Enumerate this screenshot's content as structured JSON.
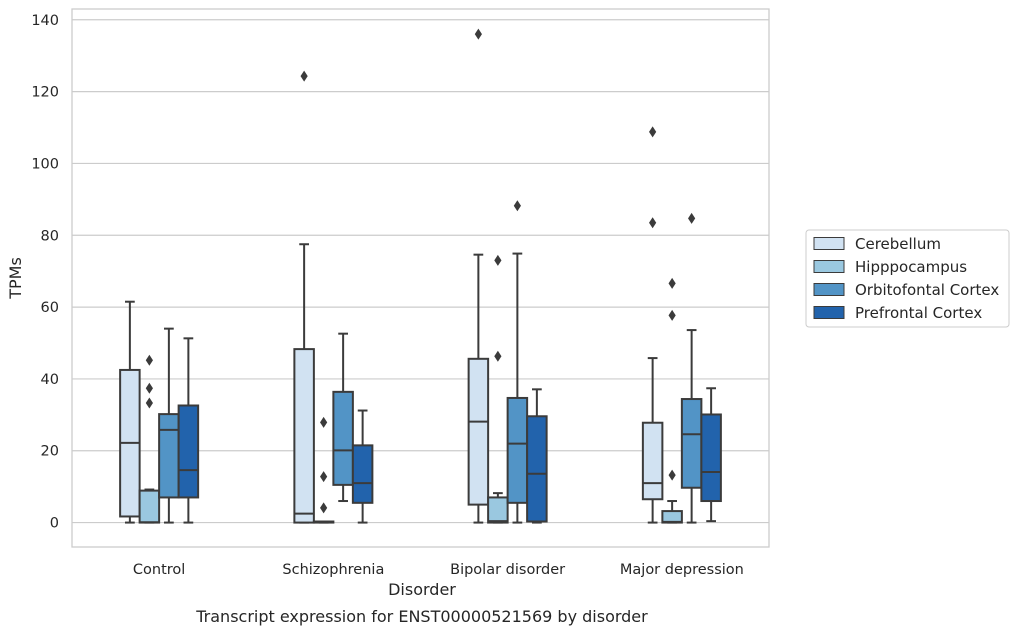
{
  "chart_data": {
    "type": "box",
    "title": "",
    "caption": "Transcript expression for ENST00000521569 by disorder",
    "xlabel": "Disorder",
    "ylabel": "TPMs",
    "ylim": [
      -6.8,
      143
    ],
    "yticks": [
      0,
      20,
      40,
      60,
      80,
      100,
      120,
      140
    ],
    "grid": "horizontal",
    "legend_position": "right",
    "categories": [
      "Control",
      "Schizophrenia",
      "Bipolar disorder",
      "Major depression"
    ],
    "series": [
      {
        "name": "Cerebellum",
        "color": "#d1e2f2",
        "boxes": [
          {
            "whisker_low": 0,
            "q1": 1.7,
            "median": 22.2,
            "q3": 42.5,
            "whisker_high": 61.5,
            "outliers": []
          },
          {
            "whisker_low": 0,
            "q1": 0,
            "median": 2.5,
            "q3": 48.3,
            "whisker_high": 77.5,
            "outliers": [
              124.3
            ]
          },
          {
            "whisker_low": 0,
            "q1": 5,
            "median": 28.1,
            "q3": 45.6,
            "whisker_high": 74.6,
            "outliers": [
              136.0
            ]
          },
          {
            "whisker_low": 0,
            "q1": 6.5,
            "median": 11,
            "q3": 27.8,
            "whisker_high": 45.8,
            "outliers": [
              83.5,
              108.8
            ]
          }
        ]
      },
      {
        "name": "Hipppocampus",
        "color": "#9ac8e0",
        "boxes": [
          {
            "whisker_low": 0,
            "q1": 0,
            "median": 0.1,
            "q3": 8.9,
            "whisker_high": 9.2,
            "outliers": [
              33.3,
              37.4,
              45.2
            ]
          },
          {
            "whisker_low": 0,
            "q1": 0,
            "median": 0.1,
            "q3": 0.3,
            "whisker_high": 0.3,
            "outliers": [
              4.1,
              12.8,
              27.9
            ]
          },
          {
            "whisker_low": 0,
            "q1": 0,
            "median": 0.4,
            "q3": 7,
            "whisker_high": 8.2,
            "outliers": [
              46.3,
              73.0
            ]
          },
          {
            "whisker_low": 0,
            "q1": 0,
            "median": 0.2,
            "q3": 3.2,
            "whisker_high": 6,
            "outliers": [
              13.2,
              57.7,
              66.6
            ]
          }
        ]
      },
      {
        "name": "Orbitofontal Cortex",
        "color": "#5294c6",
        "boxes": [
          {
            "whisker_low": 0,
            "q1": 7,
            "median": 25.8,
            "q3": 30.2,
            "whisker_high": 54,
            "outliers": []
          },
          {
            "whisker_low": 6,
            "q1": 10.5,
            "median": 20.1,
            "q3": 36.4,
            "whisker_high": 52.6,
            "outliers": []
          },
          {
            "whisker_low": 0,
            "q1": 5.5,
            "median": 22,
            "q3": 34.7,
            "whisker_high": 74.9,
            "outliers": [
              88.2
            ]
          },
          {
            "whisker_low": 0,
            "q1": 9.7,
            "median": 24.6,
            "q3": 34.4,
            "whisker_high": 53.6,
            "outliers": [
              84.7
            ]
          }
        ]
      },
      {
        "name": "Prefrontal Cortex",
        "color": "#2263ac",
        "boxes": [
          {
            "whisker_low": 0,
            "q1": 7,
            "median": 14.6,
            "q3": 32.6,
            "whisker_high": 51.3,
            "outliers": []
          },
          {
            "whisker_low": 0,
            "q1": 5.5,
            "median": 11,
            "q3": 21.5,
            "whisker_high": 31.2,
            "outliers": []
          },
          {
            "whisker_low": 0,
            "q1": 0.3,
            "median": 13.6,
            "q3": 29.6,
            "whisker_high": 37.1,
            "outliers": []
          },
          {
            "whisker_low": 0.4,
            "q1": 6,
            "median": 14.1,
            "q3": 30.1,
            "whisker_high": 37.4,
            "outliers": []
          }
        ]
      }
    ]
  }
}
